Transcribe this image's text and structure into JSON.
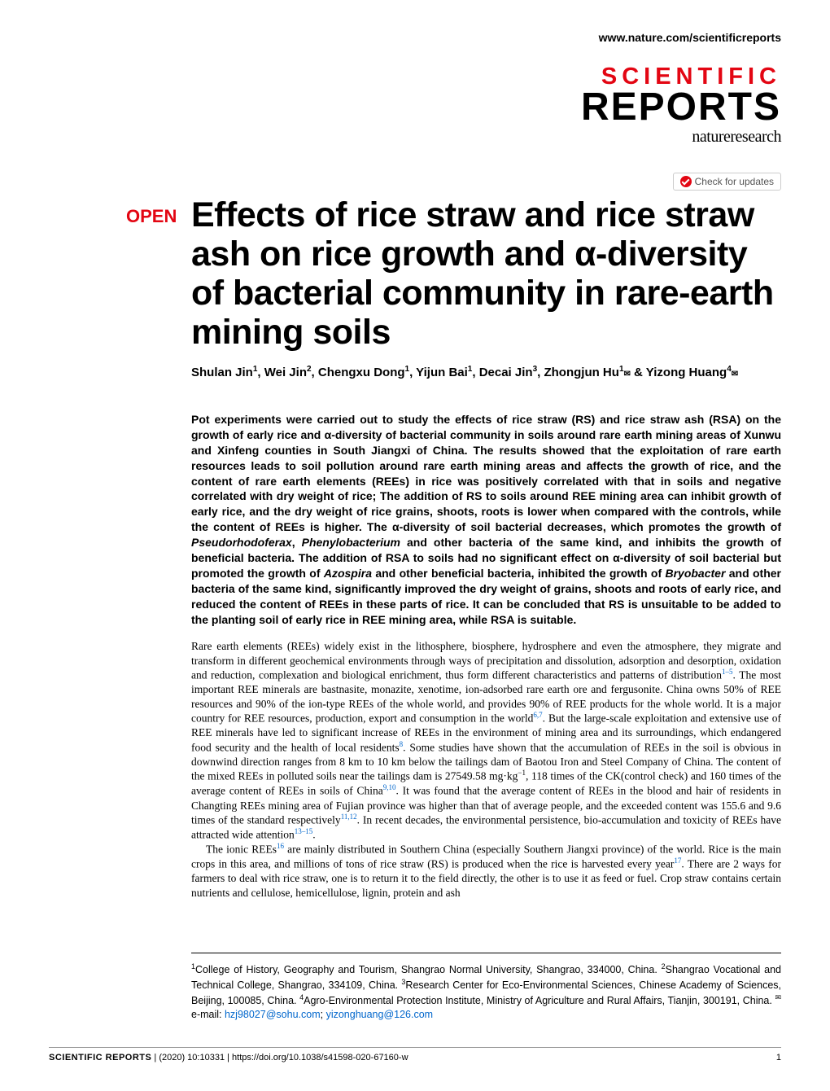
{
  "header": {
    "url": "www.nature.com/scientificreports",
    "logo_scientific": "SCIENTIFIC",
    "logo_reports": "REPORTS",
    "logo_nature": "natureresearch",
    "check_updates": "Check for updates"
  },
  "badge": {
    "open": "OPEN"
  },
  "title": "Effects of rice straw and rice straw ash on rice growth and α-diversity of bacterial community in rare-earth mining soils",
  "authors_html": "Shulan Jin<sup>1</sup>, Wei Jin<sup>2</sup>, Chengxu Dong<sup>1</sup>, Yijun Bai<sup>1</sup>, Decai Jin<sup>3</sup>, Zhongjun Hu<sup>1</sup><span class='envelope'>✉</span> & Yizong Huang<sup>4</sup><span class='envelope'>✉</span>",
  "abstract_html": "Pot experiments were carried out to study the effects of rice straw (RS) and rice straw ash (RSA) on the growth of early rice and α-diversity of bacterial community in soils around rare earth mining areas of Xunwu and Xinfeng counties in South Jiangxi of China. The results showed that the exploitation of rare earth resources leads to soil pollution around rare earth mining areas and affects the growth of rice, and the content of rare earth elements (REEs) in rice was positively correlated with that in soils and negative correlated with dry weight of rice; The addition of RS to soils around REE mining area can inhibit growth of early rice, and the dry weight of rice grains, shoots, roots is lower when compared with the controls, while the content of REEs is higher. The α-diversity of soil bacterial decreases, which promotes the growth of <em>Pseudorhodoferax</em>, <em>Phenylobacterium</em> and other bacteria of the same kind, and inhibits the growth of beneficial bacteria. The addition of RSA to soils had no significant effect on α-diversity of soil bacterial but promoted the growth of <em>Azospira</em> and other beneficial bacteria, inhibited the growth of <em>Bryobacter</em> and other bacteria of the same kind, significantly improved the dry weight of grains, shoots and roots of early rice, and reduced the content of REEs in these parts of rice. It can be concluded that RS is unsuitable to be added to the planting soil of early rice in REE mining area, while RSA is suitable.",
  "body_p1_html": "Rare earth elements (REEs) widely exist in the lithosphere, biosphere, hydrosphere and even the atmosphere, they migrate and transform in different geochemical environments through ways of precipitation and dissolution, adsorption and desorption, oxidation and reduction, complexation and biological enrichment, thus form different characteristics and patterns of distribution<sup class='cite-link'>1–5</sup>. The most important REE minerals are bastnasite, monazite, xenotime, ion-adsorbed rare earth ore and fergusonite. China owns 50% of REE resources and 90% of the ion-type REEs of the whole world, and provides 90% of REE products for the whole world. It is a major country for REE resources, production, export and consumption in the world<sup class='cite-link'>6,7</sup>. But the large-scale exploitation and extensive use of REE minerals have led to significant increase of REEs in the environment of mining area and its surroundings, which endangered food security and the health of local residents<sup class='cite-link'>8</sup>. Some studies have shown that the accumulation of REEs in the soil is obvious in downwind direction ranges from 8 km to 10 km below the tailings dam of Baotou Iron and Steel Company of China. The content of the mixed REEs in polluted soils near the tailings dam is 27549.58 mg·kg<sup>−1</sup>, 118 times of the CK(control check) and 160 times of the average content of REEs in soils of China<sup class='cite-link'>9,10</sup>. It was found that the average content of REEs in the blood and hair of residents in Changting REEs mining area of Fujian province was higher than that of average people, and the exceeded content was 155.6 and 9.6 times of the standard respectively<sup class='cite-link'>11,12</sup>. In recent decades, the environmental persistence, bio-accumulation and toxicity of REEs have attracted wide attention<sup class='cite-link'>13–15</sup>.",
  "body_p2_html": "The ionic REEs<sup class='cite-link'>16</sup> are mainly distributed in Southern China (especially Southern Jiangxi province) of the world. Rice is the main crops in this area, and millions of tons of rice straw (RS) is produced when the rice is harvested every year<sup class='cite-link'>17</sup>. There are 2 ways for farmers to deal with rice straw, one is to return it to the field directly, the other is to use it as feed or fuel. Crop straw contains certain nutrients and cellulose, hemicellulose, lignin, protein and ash",
  "affiliations_html": "<sup>1</sup>College of History, Geography and Tourism, Shangrao Normal University, Shangrao, 334000, China. <sup>2</sup>Shangrao Vocational and Technical College, Shangrao, 334109, China. <sup>3</sup>Research Center for Eco-Environmental Sciences, Chinese Academy of Sciences, Beijing, 100085, China. <sup>4</sup>Agro-Environmental Protection Institute, Ministry of Agriculture and Rural Affairs, Tianjin, 300191, China. <sup>✉</sup>e-mail: <span class='email-link'>hzj98027@sohu.com</span>; <span class='email-link'>yizonghuang@126.com</span>",
  "footer": {
    "journal": "SCIENTIFIC REPORTS",
    "citation": "(2020) 10:10331 | https://doi.org/10.1038/s41598-020-67160-w",
    "page": "1"
  },
  "colors": {
    "accent_red": "#e30613",
    "link_blue": "#0066cc",
    "text_black": "#000000",
    "background": "#ffffff",
    "border_gray": "#999999"
  }
}
